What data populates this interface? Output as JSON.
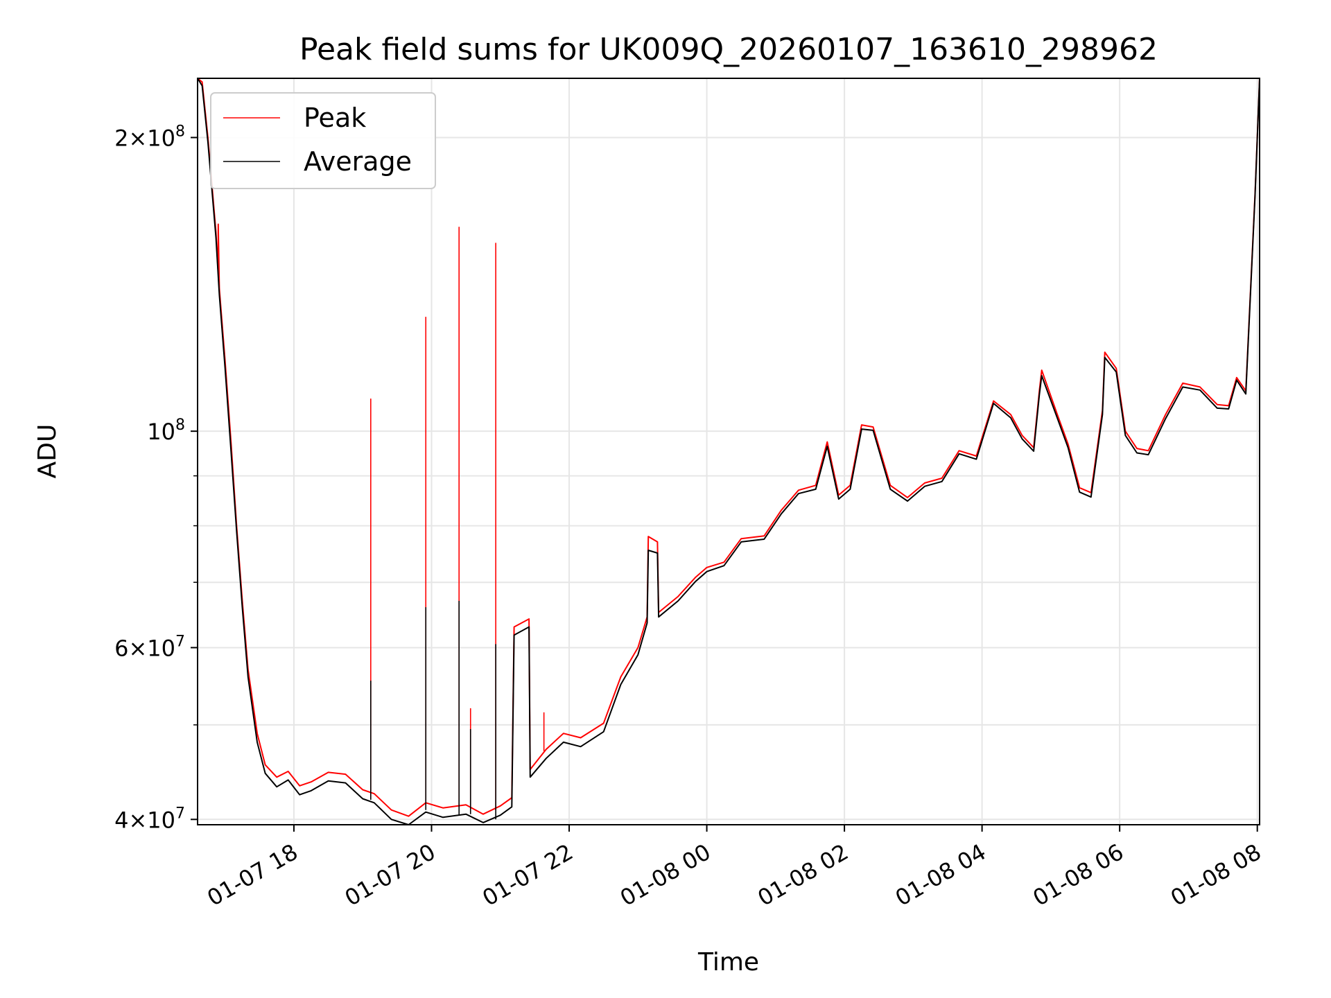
{
  "chart_data": {
    "type": "line",
    "title": "Peak field sums for UK009Q_20260107_163610_298962",
    "xlabel": "Time",
    "ylabel": "ADU",
    "y_scale": "log",
    "grid": true,
    "legend_placement": "top-left",
    "xlim": [
      "2026-01-07 16:36",
      "2026-01-08 08:02"
    ],
    "ylim": [
      39500000,
      230000000
    ],
    "x_ticks": [
      {
        "value": "2026-01-07 18:00",
        "label": "01-07 18"
      },
      {
        "value": "2026-01-07 20:00",
        "label": "01-07 20"
      },
      {
        "value": "2026-01-07 22:00",
        "label": "01-07 22"
      },
      {
        "value": "2026-01-08 00:00",
        "label": "01-08 00"
      },
      {
        "value": "2026-01-08 02:00",
        "label": "01-08 02"
      },
      {
        "value": "2026-01-08 04:00",
        "label": "01-08 04"
      },
      {
        "value": "2026-01-08 06:00",
        "label": "01-08 06"
      },
      {
        "value": "2026-01-08 08:00",
        "label": "01-08 08"
      }
    ],
    "y_ticks": [
      {
        "value": 40000000,
        "mant": "4",
        "exp": "7"
      },
      {
        "value": 60000000,
        "mant": "6",
        "exp": "7"
      },
      {
        "value": 100000000,
        "mant": "",
        "exp": "8"
      },
      {
        "value": 200000000,
        "mant": "2",
        "exp": "8"
      }
    ],
    "series": [
      {
        "name": "Peak",
        "color": "#ff0000",
        "points": [
          [
            "2026-01-07 16:36",
            230000000
          ],
          [
            "2026-01-07 16:40",
            228000000
          ],
          [
            "2026-01-07 16:45",
            200000000
          ],
          [
            "2026-01-07 16:52",
            160000000
          ],
          [
            "2026-01-07 16:54",
            145000000
          ],
          [
            "2026-01-07 16:54",
            163000000
          ],
          [
            "2026-01-07 16:55",
            140000000
          ],
          [
            "2026-01-07 17:00",
            118000000
          ],
          [
            "2026-01-07 17:05",
            98000000
          ],
          [
            "2026-01-07 17:10",
            80000000
          ],
          [
            "2026-01-07 17:15",
            67000000
          ],
          [
            "2026-01-07 17:20",
            57000000
          ],
          [
            "2026-01-07 17:28",
            49000000
          ],
          [
            "2026-01-07 17:35",
            45500000
          ],
          [
            "2026-01-07 17:45",
            44200000
          ],
          [
            "2026-01-07 17:55",
            44800000
          ],
          [
            "2026-01-07 18:05",
            43300000
          ],
          [
            "2026-01-07 18:15",
            43700000
          ],
          [
            "2026-01-07 18:30",
            44700000
          ],
          [
            "2026-01-07 18:45",
            44500000
          ],
          [
            "2026-01-07 19:00",
            42900000
          ],
          [
            "2026-01-07 19:10",
            42500000
          ],
          [
            "2026-01-07 19:25",
            40900000
          ],
          [
            "2026-01-07 19:40",
            40300000
          ],
          [
            "2026-01-07 19:55",
            41600000
          ],
          [
            "2026-01-07 20:10",
            41100000
          ],
          [
            "2026-01-07 20:30",
            41400000
          ],
          [
            "2026-01-07 20:45",
            40500000
          ],
          [
            "2026-01-07 21:00",
            41300000
          ],
          [
            "2026-01-07 21:10",
            42100000
          ],
          [
            "2026-01-07 21:12",
            63000000
          ],
          [
            "2026-01-07 21:25",
            64200000
          ],
          [
            "2026-01-07 21:26",
            45000000
          ],
          [
            "2026-01-07 21:40",
            47200000
          ],
          [
            "2026-01-07 21:55",
            49000000
          ],
          [
            "2026-01-07 22:10",
            48500000
          ],
          [
            "2026-01-07 22:30",
            50200000
          ],
          [
            "2026-01-07 22:45",
            56000000
          ],
          [
            "2026-01-07 23:00",
            60000000
          ],
          [
            "2026-01-07 23:08",
            64500000
          ],
          [
            "2026-01-07 23:09",
            78000000
          ],
          [
            "2026-01-07 23:17",
            77000000
          ],
          [
            "2026-01-07 23:18",
            65200000
          ],
          [
            "2026-01-07 23:35",
            67700000
          ],
          [
            "2026-01-07 23:50",
            70800000
          ],
          [
            "2026-01-08 00:00",
            72500000
          ],
          [
            "2026-01-08 00:15",
            73400000
          ],
          [
            "2026-01-08 00:30",
            77600000
          ],
          [
            "2026-01-08 00:50",
            78100000
          ],
          [
            "2026-01-08 01:05",
            83000000
          ],
          [
            "2026-01-08 01:20",
            87000000
          ],
          [
            "2026-01-08 01:35",
            88000000
          ],
          [
            "2026-01-08 01:45",
            97500000
          ],
          [
            "2026-01-08 01:55",
            86000000
          ],
          [
            "2026-01-08 02:05",
            88000000
          ],
          [
            "2026-01-08 02:15",
            101500000
          ],
          [
            "2026-01-08 02:25",
            101000000
          ],
          [
            "2026-01-08 02:40",
            88000000
          ],
          [
            "2026-01-08 02:55",
            85500000
          ],
          [
            "2026-01-08 03:10",
            88500000
          ],
          [
            "2026-01-08 03:25",
            89500000
          ],
          [
            "2026-01-08 03:40",
            95500000
          ],
          [
            "2026-01-08 03:55",
            94300000
          ],
          [
            "2026-01-08 04:10",
            107400000
          ],
          [
            "2026-01-08 04:25",
            104000000
          ],
          [
            "2026-01-08 04:35",
            99000000
          ],
          [
            "2026-01-08 04:45",
            96200000
          ],
          [
            "2026-01-08 04:50",
            110000000
          ],
          [
            "2026-01-08 04:52",
            115500000
          ],
          [
            "2026-01-08 05:05",
            104500000
          ],
          [
            "2026-01-08 05:15",
            97000000
          ],
          [
            "2026-01-08 05:25",
            87500000
          ],
          [
            "2026-01-08 05:35",
            86500000
          ],
          [
            "2026-01-08 05:45",
            105000000
          ],
          [
            "2026-01-08 05:47",
            120500000
          ],
          [
            "2026-01-08 05:57",
            116000000
          ],
          [
            "2026-01-08 06:05",
            100000000
          ],
          [
            "2026-01-08 06:15",
            96000000
          ],
          [
            "2026-01-08 06:25",
            95500000
          ],
          [
            "2026-01-08 06:40",
            104000000
          ],
          [
            "2026-01-08 06:55",
            112000000
          ],
          [
            "2026-01-08 07:10",
            111000000
          ],
          [
            "2026-01-08 07:25",
            106500000
          ],
          [
            "2026-01-08 07:35",
            106200000
          ],
          [
            "2026-01-08 07:42",
            113500000
          ],
          [
            "2026-01-08 07:50",
            110000000
          ],
          [
            "2026-01-08 07:58",
            175000000
          ],
          [
            "2026-01-08 08:02",
            230000000
          ]
        ],
        "spikes": [
          {
            "x": "2026-01-07 19:07",
            "base": 42800000,
            "top": 108000000
          },
          {
            "x": "2026-01-07 19:55",
            "base": 41800000,
            "top": 131000000
          },
          {
            "x": "2026-01-07 20:24",
            "base": 41200000,
            "top": 162000000
          },
          {
            "x": "2026-01-07 20:34",
            "base": 41300000,
            "top": 52000000
          },
          {
            "x": "2026-01-07 20:56",
            "base": 40900000,
            "top": 156000000
          },
          {
            "x": "2026-01-07 21:38",
            "base": 47000000,
            "top": 51500000
          }
        ]
      },
      {
        "name": "Average",
        "color": "#000000",
        "points": [
          [
            "2026-01-07 16:36",
            230000000
          ],
          [
            "2026-01-07 16:40",
            226000000
          ],
          [
            "2026-01-07 16:45",
            198000000
          ],
          [
            "2026-01-07 16:52",
            158000000
          ],
          [
            "2026-01-07 16:55",
            138000000
          ],
          [
            "2026-01-07 17:00",
            116000000
          ],
          [
            "2026-01-07 17:05",
            96000000
          ],
          [
            "2026-01-07 17:10",
            79000000
          ],
          [
            "2026-01-07 17:15",
            66000000
          ],
          [
            "2026-01-07 17:20",
            56000000
          ],
          [
            "2026-01-07 17:28",
            48000000
          ],
          [
            "2026-01-07 17:35",
            44600000
          ],
          [
            "2026-01-07 17:45",
            43200000
          ],
          [
            "2026-01-07 17:55",
            43900000
          ],
          [
            "2026-01-07 18:05",
            42400000
          ],
          [
            "2026-01-07 18:15",
            42800000
          ],
          [
            "2026-01-07 18:30",
            43800000
          ],
          [
            "2026-01-07 18:45",
            43600000
          ],
          [
            "2026-01-07 19:00",
            42000000
          ],
          [
            "2026-01-07 19:10",
            41600000
          ],
          [
            "2026-01-07 19:25",
            40000000
          ],
          [
            "2026-01-07 19:40",
            39500000
          ],
          [
            "2026-01-07 19:55",
            40700000
          ],
          [
            "2026-01-07 20:10",
            40200000
          ],
          [
            "2026-01-07 20:30",
            40500000
          ],
          [
            "2026-01-07 20:45",
            39700000
          ],
          [
            "2026-01-07 21:00",
            40400000
          ],
          [
            "2026-01-07 21:10",
            41200000
          ],
          [
            "2026-01-07 21:12",
            61800000
          ],
          [
            "2026-01-07 21:25",
            63000000
          ],
          [
            "2026-01-07 21:26",
            44200000
          ],
          [
            "2026-01-07 21:40",
            46200000
          ],
          [
            "2026-01-07 21:55",
            48000000
          ],
          [
            "2026-01-07 22:10",
            47500000
          ],
          [
            "2026-01-07 22:30",
            49200000
          ],
          [
            "2026-01-07 22:45",
            55000000
          ],
          [
            "2026-01-07 23:00",
            59000000
          ],
          [
            "2026-01-07 23:08",
            63600000
          ],
          [
            "2026-01-07 23:09",
            75500000
          ],
          [
            "2026-01-07 23:17",
            75000000
          ],
          [
            "2026-01-07 23:18",
            64500000
          ],
          [
            "2026-01-07 23:35",
            67000000
          ],
          [
            "2026-01-07 23:50",
            70100000
          ],
          [
            "2026-01-08 00:00",
            71800000
          ],
          [
            "2026-01-08 00:15",
            72800000
          ],
          [
            "2026-01-08 00:30",
            77000000
          ],
          [
            "2026-01-08 00:50",
            77500000
          ],
          [
            "2026-01-08 01:05",
            82300000
          ],
          [
            "2026-01-08 01:20",
            86300000
          ],
          [
            "2026-01-08 01:35",
            87200000
          ],
          [
            "2026-01-08 01:45",
            96500000
          ],
          [
            "2026-01-08 01:55",
            85200000
          ],
          [
            "2026-01-08 02:05",
            87200000
          ],
          [
            "2026-01-08 02:15",
            100500000
          ],
          [
            "2026-01-08 02:25",
            100200000
          ],
          [
            "2026-01-08 02:40",
            87200000
          ],
          [
            "2026-01-08 02:55",
            84800000
          ],
          [
            "2026-01-08 03:10",
            87800000
          ],
          [
            "2026-01-08 03:25",
            88800000
          ],
          [
            "2026-01-08 03:40",
            94800000
          ],
          [
            "2026-01-08 03:55",
            93600000
          ],
          [
            "2026-01-08 04:10",
            106800000
          ],
          [
            "2026-01-08 04:25",
            103200000
          ],
          [
            "2026-01-08 04:35",
            98200000
          ],
          [
            "2026-01-08 04:45",
            95400000
          ],
          [
            "2026-01-08 04:50",
            109000000
          ],
          [
            "2026-01-08 04:52",
            114000000
          ],
          [
            "2026-01-08 05:05",
            103600000
          ],
          [
            "2026-01-08 05:15",
            96200000
          ],
          [
            "2026-01-08 05:25",
            86600000
          ],
          [
            "2026-01-08 05:35",
            85600000
          ],
          [
            "2026-01-08 05:45",
            104000000
          ],
          [
            "2026-01-08 05:47",
            119000000
          ],
          [
            "2026-01-08 05:57",
            115000000
          ],
          [
            "2026-01-08 06:05",
            99000000
          ],
          [
            "2026-01-08 06:15",
            95000000
          ],
          [
            "2026-01-08 06:25",
            94600000
          ],
          [
            "2026-01-08 06:40",
            103000000
          ],
          [
            "2026-01-08 06:55",
            111000000
          ],
          [
            "2026-01-08 07:10",
            110200000
          ],
          [
            "2026-01-08 07:25",
            105600000
          ],
          [
            "2026-01-08 07:35",
            105400000
          ],
          [
            "2026-01-08 07:42",
            112800000
          ],
          [
            "2026-01-08 07:50",
            109200000
          ],
          [
            "2026-01-08 07:58",
            174000000
          ],
          [
            "2026-01-08 08:02",
            230000000
          ]
        ],
        "spikes": [
          {
            "x": "2026-01-07 19:07",
            "base": 41900000,
            "top": 55500000
          },
          {
            "x": "2026-01-07 19:55",
            "base": 40900000,
            "top": 66000000
          },
          {
            "x": "2026-01-07 20:24",
            "base": 40400000,
            "top": 67000000
          },
          {
            "x": "2026-01-07 20:34",
            "base": 40500000,
            "top": 49500000
          },
          {
            "x": "2026-01-07 20:56",
            "base": 40000000,
            "top": 60500000
          }
        ]
      }
    ]
  }
}
